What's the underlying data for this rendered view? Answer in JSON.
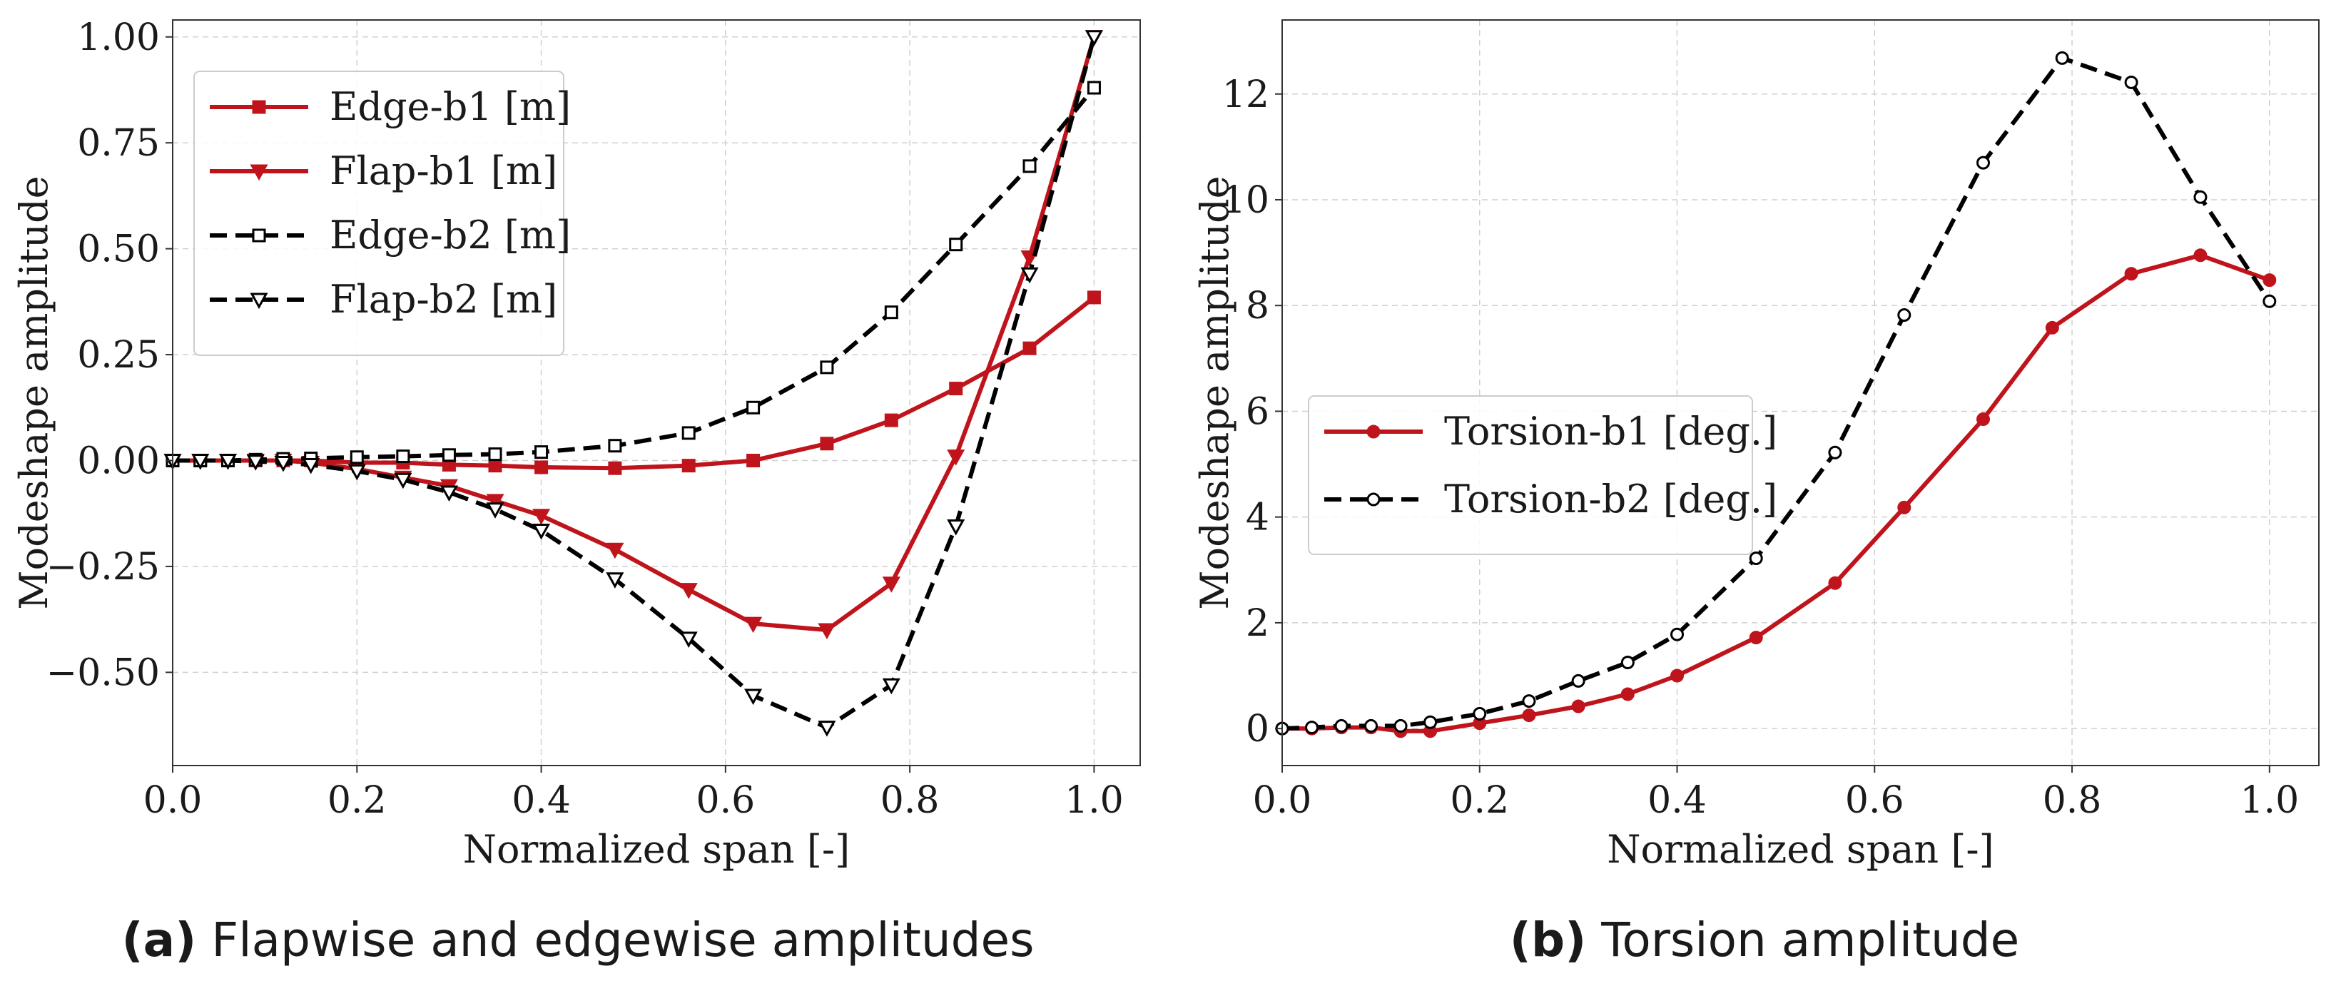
{
  "chart_data": [
    {
      "type": "line",
      "xlabel": "Normalized span [-]",
      "ylabel": "Modeshape amplitude",
      "xlim": [
        0.0,
        1.05
      ],
      "ylim": [
        -0.72,
        1.04
      ],
      "xticks": [
        0.0,
        0.2,
        0.4,
        0.6,
        0.8,
        1.0
      ],
      "xtick_labels": [
        "0.0",
        "0.2",
        "0.4",
        "0.6",
        "0.8",
        "1.0"
      ],
      "yticks": [
        -0.5,
        -0.25,
        0.0,
        0.25,
        0.5,
        0.75,
        1.0
      ],
      "ytick_labels": [
        "−0.50",
        "−0.25",
        "0.00",
        "0.25",
        "0.50",
        "0.75",
        "1.00"
      ],
      "grid": true,
      "legend_position": "top-left",
      "caption": {
        "prefix": "(a)",
        "text": " Flapwise and edgewise amplitudes"
      },
      "series": [
        {
          "name": "Edge-b1 [m]",
          "color": "#c0141c",
          "dash": "solid",
          "marker": "square",
          "filled": true,
          "x": [
            0.0,
            0.03,
            0.06,
            0.09,
            0.12,
            0.15,
            0.2,
            0.25,
            0.3,
            0.35,
            0.4,
            0.48,
            0.56,
            0.63,
            0.71,
            0.78,
            0.85,
            0.93,
            1.0
          ],
          "y": [
            0.0,
            0.0,
            0.0,
            0.0,
            0.0,
            0.0,
            -0.005,
            -0.005,
            -0.01,
            -0.012,
            -0.016,
            -0.018,
            -0.012,
            0.0,
            0.04,
            0.095,
            0.17,
            0.265,
            0.385
          ]
        },
        {
          "name": "Flap-b1 [m]",
          "color": "#c0141c",
          "dash": "solid",
          "marker": "triangle-down",
          "filled": true,
          "x": [
            0.0,
            0.03,
            0.06,
            0.09,
            0.12,
            0.15,
            0.2,
            0.25,
            0.3,
            0.35,
            0.4,
            0.48,
            0.56,
            0.63,
            0.71,
            0.78,
            0.85,
            0.93,
            1.0
          ],
          "y": [
            0.0,
            0.0,
            0.0,
            0.0,
            0.0,
            -0.005,
            -0.02,
            -0.04,
            -0.06,
            -0.095,
            -0.13,
            -0.21,
            -0.305,
            -0.385,
            -0.4,
            -0.29,
            0.01,
            0.48,
            1.0
          ]
        },
        {
          "name": "Edge-b2 [m]",
          "color": "#000000",
          "dash": "dashed",
          "marker": "square",
          "filled": false,
          "x": [
            0.0,
            0.03,
            0.06,
            0.09,
            0.12,
            0.15,
            0.2,
            0.25,
            0.3,
            0.35,
            0.4,
            0.48,
            0.56,
            0.63,
            0.71,
            0.78,
            0.85,
            0.93,
            1.0
          ],
          "y": [
            0.0,
            0.0,
            0.0,
            0.002,
            0.004,
            0.005,
            0.008,
            0.01,
            0.013,
            0.015,
            0.02,
            0.035,
            0.065,
            0.125,
            0.22,
            0.35,
            0.51,
            0.695,
            0.88
          ]
        },
        {
          "name": "Flap-b2 [m]",
          "color": "#000000",
          "dash": "dashed",
          "marker": "triangle-down",
          "filled": false,
          "x": [
            0.0,
            0.03,
            0.06,
            0.09,
            0.12,
            0.15,
            0.2,
            0.25,
            0.3,
            0.35,
            0.4,
            0.48,
            0.56,
            0.63,
            0.71,
            0.78,
            0.85,
            0.93,
            1.0
          ],
          "y": [
            0.0,
            0.0,
            0.0,
            -0.002,
            -0.005,
            -0.01,
            -0.025,
            -0.045,
            -0.075,
            -0.115,
            -0.165,
            -0.28,
            -0.42,
            -0.555,
            -0.63,
            -0.53,
            -0.155,
            0.44,
            1.0
          ]
        }
      ]
    },
    {
      "type": "line",
      "xlabel": "Normalized span [-]",
      "ylabel": "Modeshape amplitude",
      "xlim": [
        0.0,
        1.05
      ],
      "ylim": [
        -0.7,
        13.4
      ],
      "xticks": [
        0.0,
        0.2,
        0.4,
        0.6,
        0.8,
        1.0
      ],
      "xtick_labels": [
        "0.0",
        "0.2",
        "0.4",
        "0.6",
        "0.8",
        "1.0"
      ],
      "yticks": [
        0,
        2,
        4,
        6,
        8,
        10,
        12
      ],
      "ytick_labels": [
        "0",
        "2",
        "4",
        "6",
        "8",
        "10",
        "12"
      ],
      "grid": true,
      "legend_position": "center-left",
      "caption": {
        "prefix": "(b)",
        "text": " Torsion amplitude"
      },
      "series": [
        {
          "name": "Torsion-b1 [deg.]",
          "color": "#c0141c",
          "dash": "solid",
          "marker": "circle",
          "filled": true,
          "x": [
            0.0,
            0.03,
            0.06,
            0.09,
            0.12,
            0.15,
            0.2,
            0.25,
            0.3,
            0.35,
            0.4,
            0.48,
            0.56,
            0.63,
            0.71,
            0.78,
            0.86,
            0.93,
            1.0
          ],
          "y": [
            0.0,
            0.0,
            0.02,
            0.02,
            -0.05,
            -0.05,
            0.1,
            0.25,
            0.42,
            0.65,
            1.0,
            1.72,
            2.75,
            4.18,
            5.85,
            7.58,
            8.6,
            8.95,
            8.48
          ]
        },
        {
          "name": "Torsion-b2 [deg.]",
          "color": "#000000",
          "dash": "dashed",
          "marker": "circle",
          "filled": false,
          "x": [
            0.0,
            0.03,
            0.06,
            0.09,
            0.12,
            0.15,
            0.2,
            0.25,
            0.3,
            0.35,
            0.4,
            0.48,
            0.56,
            0.63,
            0.71,
            0.79,
            0.86,
            0.93,
            1.0
          ],
          "y": [
            0.0,
            0.02,
            0.05,
            0.05,
            0.05,
            0.12,
            0.28,
            0.52,
            0.9,
            1.25,
            1.78,
            3.22,
            5.22,
            7.82,
            10.7,
            12.68,
            12.22,
            10.05,
            8.08
          ]
        }
      ]
    }
  ]
}
